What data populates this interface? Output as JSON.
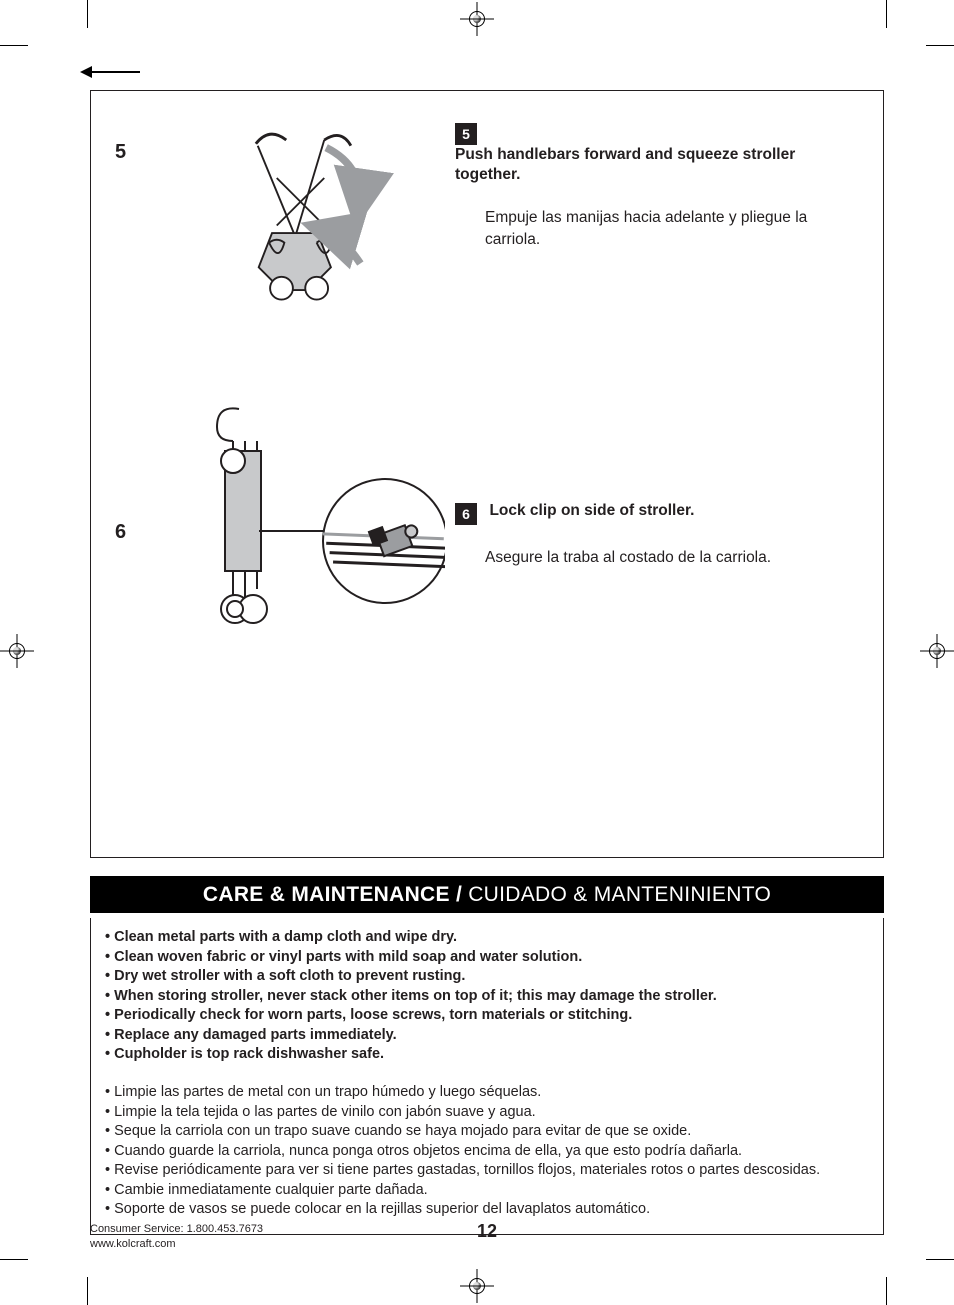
{
  "colors": {
    "ink": "#231f20",
    "white": "#ffffff",
    "black": "#000000",
    "illus_grey": "#9b9da0",
    "illus_light": "#c8c9cb"
  },
  "steps": [
    {
      "left_num": "5",
      "badge": "5",
      "en": "Push handlebars forward and squeeze stroller together.",
      "es": "Empuje las manijas hacia adelante y pliegue la carriola."
    },
    {
      "left_num": "6",
      "badge": "6",
      "en": "Lock clip on side of stroller.",
      "es": "Asegure la traba al costado de la carriola."
    }
  ],
  "section_title": {
    "bold": "CARE & MAINTENANCE / ",
    "regular": "CUIDADO & MANTENINIENTO"
  },
  "care_en": [
    "Clean metal parts with a damp cloth and wipe dry.",
    "Clean woven fabric or vinyl parts with mild soap and water solution.",
    "Dry wet stroller with a soft cloth to prevent rusting.",
    "When storing stroller, never stack other items on top of it; this may damage the stroller.",
    "Periodically check for worn parts, loose screws, torn materials or stitching.",
    "Replace any damaged parts immediately.",
    "Cupholder is top rack dishwasher safe."
  ],
  "care_es": [
    "Limpie las partes de metal con un trapo húmedo y luego séquelas.",
    "Limpie la tela tejida o las partes de vinilo con jabón suave y agua.",
    "Seque la carriola con un trapo suave cuando se haya mojado para evitar de que se oxide.",
    "Cuando guarde la carriola, nunca ponga otros objetos encima de ella, ya que esto podría dañarla.",
    "Revise periódicamente para ver si tiene partes gastadas, tornillos flojos, materiales rotos o partes descosidas.",
    "Cambie inmediatamente cualquier parte dañada.",
    "Soporte de vasos se puede colocar en la rejillas superior del lavaplatos automático."
  ],
  "footer": {
    "service": "Consumer Service: 1.800.453.7673",
    "url": "www.kolcraft.com",
    "page": "12"
  }
}
